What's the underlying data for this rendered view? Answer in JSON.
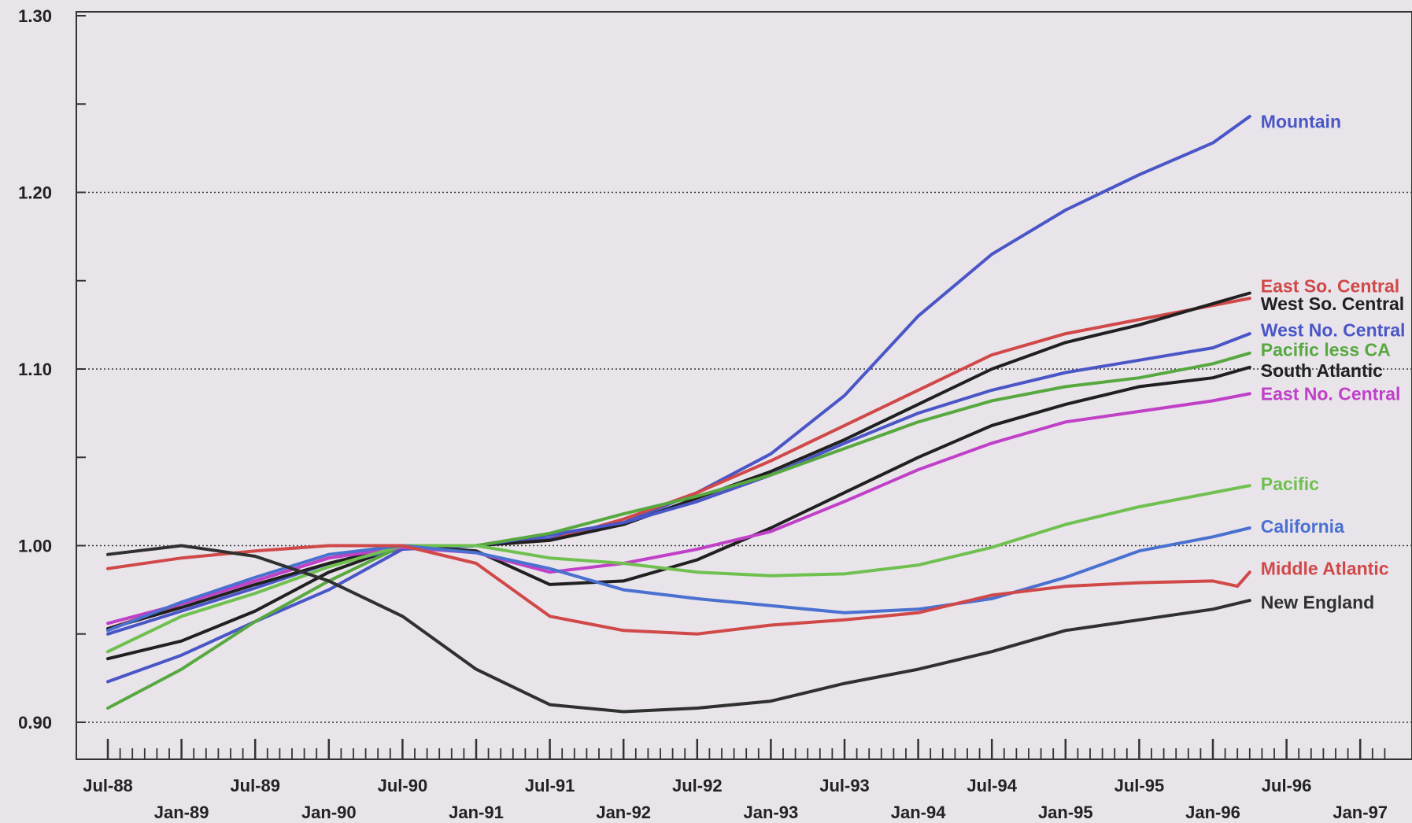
{
  "chart_data": {
    "type": "line",
    "title": "",
    "xlabel": "",
    "ylabel": "",
    "ylim": [
      0.88,
      1.3
    ],
    "xlim": [
      "1988-07",
      "1997-03"
    ],
    "grid": "dotted horizontal lines at 0.90, 1.00, 1.10, 1.20",
    "legend": "labels at right end of each line",
    "y_ticks": [
      {
        "value": 0.9,
        "label": "0.90"
      },
      {
        "value": 1.0,
        "label": "1.00"
      },
      {
        "value": 1.1,
        "label": "1.10"
      },
      {
        "value": 1.2,
        "label": "1.20"
      },
      {
        "value": 1.3,
        "label": "1.30"
      }
    ],
    "y_minor_ticks": [
      0.95,
      1.05,
      1.15,
      1.25
    ],
    "grid_lines": [
      0.9,
      1.0,
      1.1,
      1.2
    ],
    "x_ticks_upper": [
      {
        "date": "1988-07",
        "label": "Jul-88"
      },
      {
        "date": "1989-07",
        "label": "Jul-89"
      },
      {
        "date": "1990-07",
        "label": "Jul-90"
      },
      {
        "date": "1991-07",
        "label": "Jul-91"
      },
      {
        "date": "1992-07",
        "label": "Jul-92"
      },
      {
        "date": "1993-07",
        "label": "Jul-93"
      },
      {
        "date": "1994-07",
        "label": "Jul-94"
      },
      {
        "date": "1995-07",
        "label": "Jul-95"
      },
      {
        "date": "1996-07",
        "label": "Jul-96"
      }
    ],
    "x_ticks_lower": [
      {
        "date": "1989-01",
        "label": "Jan-89"
      },
      {
        "date": "1990-01",
        "label": "Jan-90"
      },
      {
        "date": "1991-01",
        "label": "Jan-91"
      },
      {
        "date": "1992-01",
        "label": "Jan-92"
      },
      {
        "date": "1993-01",
        "label": "Jan-93"
      },
      {
        "date": "1994-01",
        "label": "Jan-94"
      },
      {
        "date": "1995-01",
        "label": "Jan-95"
      },
      {
        "date": "1996-01",
        "label": "Jan-96"
      },
      {
        "date": "1997-01",
        "label": "Jan-97"
      }
    ],
    "series": [
      {
        "name": "Mountain",
        "color": "#4a56c6",
        "label_value": 1.24,
        "points": [
          [
            "1988-07",
            0.923
          ],
          [
            "1989-01",
            0.938
          ],
          [
            "1989-07",
            0.957
          ],
          [
            "1990-01",
            0.975
          ],
          [
            "1990-07",
            0.998
          ],
          [
            "1991-01",
            1.0
          ],
          [
            "1991-07",
            1.004
          ],
          [
            "1992-01",
            1.013
          ],
          [
            "1992-07",
            1.03
          ],
          [
            "1993-01",
            1.052
          ],
          [
            "1993-07",
            1.085
          ],
          [
            "1994-01",
            1.13
          ],
          [
            "1994-07",
            1.165
          ],
          [
            "1995-01",
            1.19
          ],
          [
            "1995-07",
            1.21
          ],
          [
            "1996-01",
            1.228
          ],
          [
            "1996-04",
            1.243
          ]
        ]
      },
      {
        "name": "East So. Central",
        "color": "#d04848",
        "label_value": 1.147,
        "points": [
          [
            "1988-07",
            0.953
          ],
          [
            "1989-01",
            0.967
          ],
          [
            "1989-07",
            0.98
          ],
          [
            "1990-01",
            0.993
          ],
          [
            "1990-07",
            1.0
          ],
          [
            "1991-01",
            1.0
          ],
          [
            "1991-07",
            1.003
          ],
          [
            "1992-01",
            1.015
          ],
          [
            "1992-07",
            1.03
          ],
          [
            "1993-01",
            1.048
          ],
          [
            "1993-07",
            1.068
          ],
          [
            "1994-01",
            1.088
          ],
          [
            "1994-07",
            1.108
          ],
          [
            "1995-01",
            1.12
          ],
          [
            "1995-07",
            1.128
          ],
          [
            "1996-01",
            1.136
          ],
          [
            "1996-04",
            1.14
          ]
        ]
      },
      {
        "name": "West So. Central",
        "color": "#202020",
        "label_value": 1.137,
        "points": [
          [
            "1988-07",
            0.936
          ],
          [
            "1989-01",
            0.946
          ],
          [
            "1989-07",
            0.963
          ],
          [
            "1990-01",
            0.985
          ],
          [
            "1990-07",
            1.0
          ],
          [
            "1991-01",
            1.0
          ],
          [
            "1991-07",
            1.003
          ],
          [
            "1992-01",
            1.012
          ],
          [
            "1992-07",
            1.027
          ],
          [
            "1993-01",
            1.042
          ],
          [
            "1993-07",
            1.06
          ],
          [
            "1994-01",
            1.08
          ],
          [
            "1994-07",
            1.1
          ],
          [
            "1995-01",
            1.115
          ],
          [
            "1995-07",
            1.125
          ],
          [
            "1996-01",
            1.137
          ],
          [
            "1996-04",
            1.143
          ]
        ]
      },
      {
        "name": "West No. Central",
        "color": "#4a56c6",
        "label_value": 1.122,
        "points": [
          [
            "1988-07",
            0.95
          ],
          [
            "1989-01",
            0.963
          ],
          [
            "1989-07",
            0.976
          ],
          [
            "1990-01",
            0.99
          ],
          [
            "1990-07",
            0.998
          ],
          [
            "1991-01",
            1.0
          ],
          [
            "1991-07",
            1.006
          ],
          [
            "1992-01",
            1.013
          ],
          [
            "1992-07",
            1.025
          ],
          [
            "1993-01",
            1.04
          ],
          [
            "1993-07",
            1.058
          ],
          [
            "1994-01",
            1.075
          ],
          [
            "1994-07",
            1.088
          ],
          [
            "1995-01",
            1.098
          ],
          [
            "1995-07",
            1.105
          ],
          [
            "1996-01",
            1.112
          ],
          [
            "1996-04",
            1.12
          ]
        ]
      },
      {
        "name": "Pacific less CA",
        "color": "#58a840",
        "label_value": 1.111,
        "points": [
          [
            "1988-07",
            0.908
          ],
          [
            "1989-01",
            0.93
          ],
          [
            "1989-07",
            0.957
          ],
          [
            "1990-01",
            0.98
          ],
          [
            "1990-07",
            1.0
          ],
          [
            "1991-01",
            1.0
          ],
          [
            "1991-07",
            1.007
          ],
          [
            "1992-01",
            1.018
          ],
          [
            "1992-07",
            1.028
          ],
          [
            "1993-01",
            1.04
          ],
          [
            "1993-07",
            1.055
          ],
          [
            "1994-01",
            1.07
          ],
          [
            "1994-07",
            1.082
          ],
          [
            "1995-01",
            1.09
          ],
          [
            "1995-07",
            1.095
          ],
          [
            "1996-01",
            1.103
          ],
          [
            "1996-04",
            1.109
          ]
        ]
      },
      {
        "name": "South Atlantic",
        "color": "#202020",
        "label_value": 1.099,
        "points": [
          [
            "1988-07",
            0.953
          ],
          [
            "1989-01",
            0.965
          ],
          [
            "1989-07",
            0.978
          ],
          [
            "1990-01",
            0.99
          ],
          [
            "1990-07",
            1.0
          ],
          [
            "1991-01",
            0.997
          ],
          [
            "1991-07",
            0.978
          ],
          [
            "1992-01",
            0.98
          ],
          [
            "1992-07",
            0.992
          ],
          [
            "1993-01",
            1.01
          ],
          [
            "1993-07",
            1.03
          ],
          [
            "1994-01",
            1.05
          ],
          [
            "1994-07",
            1.068
          ],
          [
            "1995-01",
            1.08
          ],
          [
            "1995-07",
            1.09
          ],
          [
            "1996-01",
            1.095
          ],
          [
            "1996-04",
            1.101
          ]
        ]
      },
      {
        "name": "East No. Central",
        "color": "#c040c8",
        "label_value": 1.086,
        "points": [
          [
            "1988-07",
            0.956
          ],
          [
            "1989-01",
            0.967
          ],
          [
            "1989-07",
            0.98
          ],
          [
            "1990-01",
            0.993
          ],
          [
            "1990-07",
            0.999
          ],
          [
            "1991-01",
            0.996
          ],
          [
            "1991-07",
            0.985
          ],
          [
            "1992-01",
            0.99
          ],
          [
            "1992-07",
            0.998
          ],
          [
            "1993-01",
            1.008
          ],
          [
            "1993-07",
            1.025
          ],
          [
            "1994-01",
            1.043
          ],
          [
            "1994-07",
            1.058
          ],
          [
            "1995-01",
            1.07
          ],
          [
            "1995-07",
            1.076
          ],
          [
            "1996-01",
            1.082
          ],
          [
            "1996-04",
            1.086
          ]
        ]
      },
      {
        "name": "Pacific",
        "color": "#70c050",
        "label_value": 1.035,
        "points": [
          [
            "1988-07",
            0.94
          ],
          [
            "1989-01",
            0.96
          ],
          [
            "1989-07",
            0.973
          ],
          [
            "1990-01",
            0.988
          ],
          [
            "1990-07",
            1.0
          ],
          [
            "1991-01",
            1.0
          ],
          [
            "1991-07",
            0.993
          ],
          [
            "1992-01",
            0.99
          ],
          [
            "1992-07",
            0.985
          ],
          [
            "1993-01",
            0.983
          ],
          [
            "1993-07",
            0.984
          ],
          [
            "1994-01",
            0.989
          ],
          [
            "1994-07",
            0.999
          ],
          [
            "1995-01",
            1.012
          ],
          [
            "1995-07",
            1.022
          ],
          [
            "1996-01",
            1.03
          ],
          [
            "1996-04",
            1.034
          ]
        ]
      },
      {
        "name": "California",
        "color": "#4a70d0",
        "label_value": 1.011,
        "points": [
          [
            "1988-07",
            0.952
          ],
          [
            "1989-01",
            0.968
          ],
          [
            "1989-07",
            0.982
          ],
          [
            "1990-01",
            0.995
          ],
          [
            "1990-07",
            1.0
          ],
          [
            "1991-01",
            0.996
          ],
          [
            "1991-07",
            0.987
          ],
          [
            "1992-01",
            0.975
          ],
          [
            "1992-07",
            0.97
          ],
          [
            "1993-01",
            0.966
          ],
          [
            "1993-07",
            0.962
          ],
          [
            "1994-01",
            0.964
          ],
          [
            "1994-07",
            0.97
          ],
          [
            "1995-01",
            0.982
          ],
          [
            "1995-07",
            0.997
          ],
          [
            "1996-01",
            1.005
          ],
          [
            "1996-04",
            1.01
          ]
        ]
      },
      {
        "name": "Middle Atlantic",
        "color": "#d04848",
        "label_value": 0.987,
        "points": [
          [
            "1988-07",
            0.987
          ],
          [
            "1989-01",
            0.993
          ],
          [
            "1989-07",
            0.997
          ],
          [
            "1990-01",
            1.0
          ],
          [
            "1990-07",
            1.0
          ],
          [
            "1991-01",
            0.99
          ],
          [
            "1991-07",
            0.96
          ],
          [
            "1992-01",
            0.952
          ],
          [
            "1992-07",
            0.95
          ],
          [
            "1993-01",
            0.955
          ],
          [
            "1993-07",
            0.958
          ],
          [
            "1994-01",
            0.962
          ],
          [
            "1994-07",
            0.972
          ],
          [
            "1995-01",
            0.977
          ],
          [
            "1995-07",
            0.979
          ],
          [
            "1996-01",
            0.98
          ],
          [
            "1996-03",
            0.977
          ],
          [
            "1996-04",
            0.985
          ]
        ]
      },
      {
        "name": "New England",
        "color": "#303030",
        "label_value": 0.968,
        "points": [
          [
            "1988-07",
            0.995
          ],
          [
            "1989-01",
            1.0
          ],
          [
            "1989-07",
            0.994
          ],
          [
            "1990-01",
            0.98
          ],
          [
            "1990-07",
            0.96
          ],
          [
            "1991-01",
            0.93
          ],
          [
            "1991-07",
            0.91
          ],
          [
            "1992-01",
            0.906
          ],
          [
            "1992-07",
            0.908
          ],
          [
            "1993-01",
            0.912
          ],
          [
            "1993-07",
            0.922
          ],
          [
            "1994-01",
            0.93
          ],
          [
            "1994-07",
            0.94
          ],
          [
            "1995-01",
            0.952
          ],
          [
            "1995-07",
            0.958
          ],
          [
            "1996-01",
            0.964
          ],
          [
            "1996-04",
            0.969
          ]
        ]
      }
    ]
  }
}
